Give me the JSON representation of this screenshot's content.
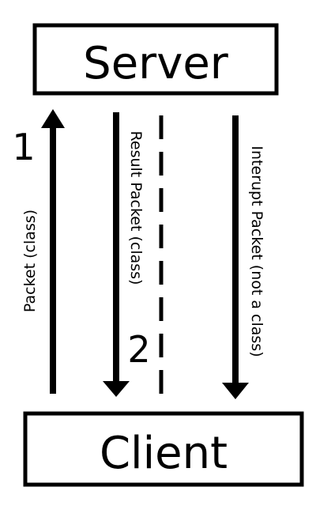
{
  "server": {
    "label": "Server"
  },
  "client": {
    "label": "Client"
  },
  "arrows": [
    {
      "label": "Packet (class)",
      "direction": "up",
      "step": "1"
    },
    {
      "label": "Result Packet (class)",
      "direction": "down",
      "step": "2"
    },
    {
      "label": "Interupt Packet (not a class)",
      "direction": "down",
      "step": ""
    }
  ],
  "colors": {
    "stroke": "#000000",
    "background": "#ffffff"
  }
}
